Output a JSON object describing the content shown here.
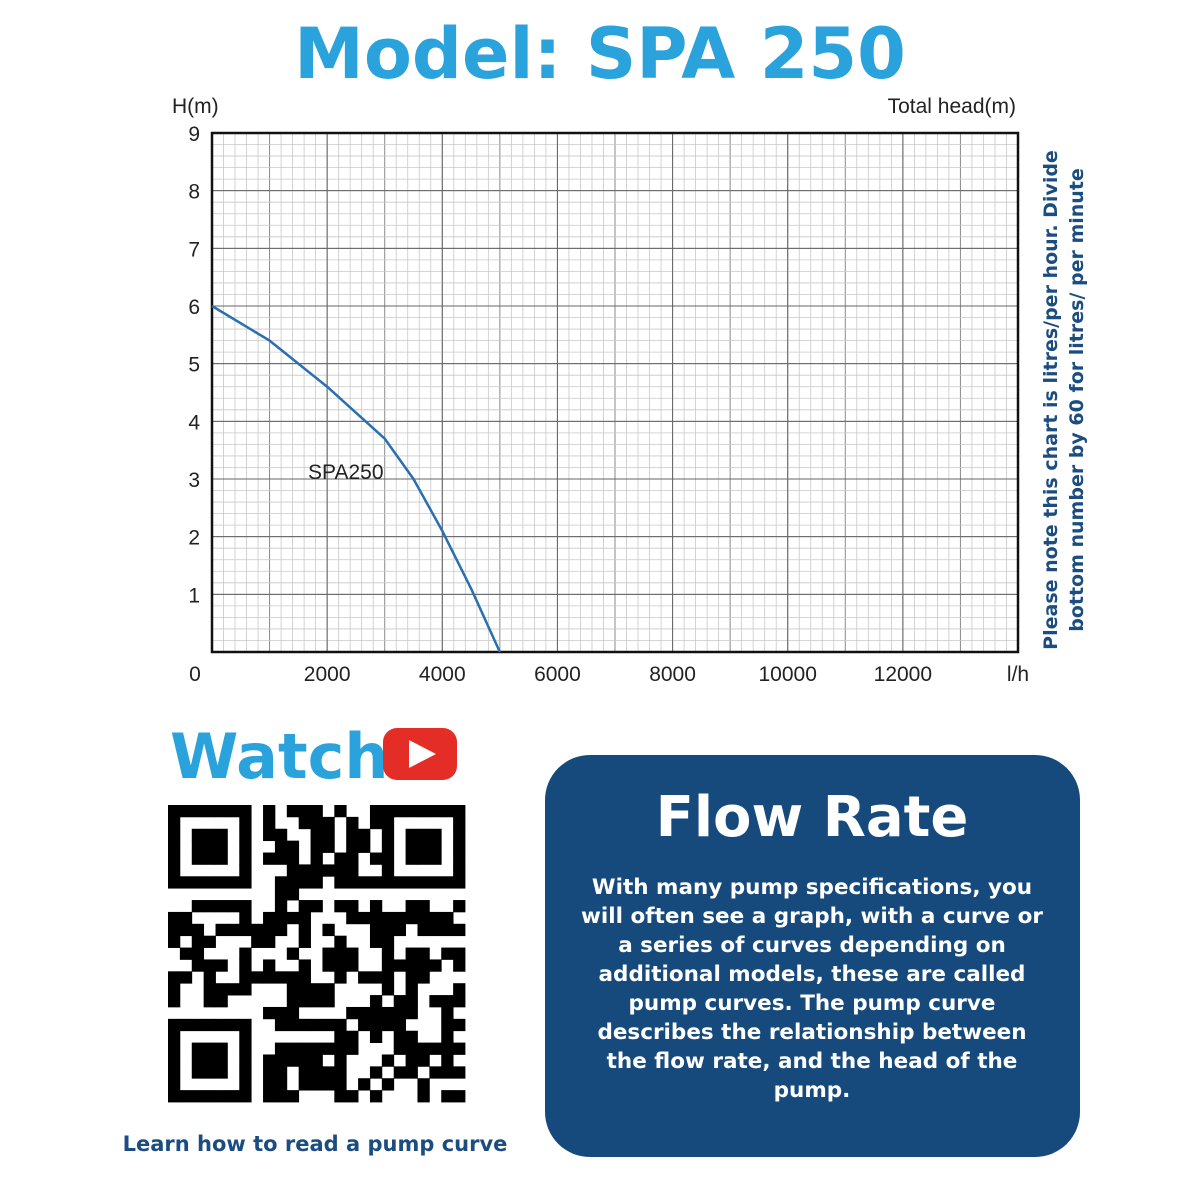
{
  "title": "Model: SPA 250",
  "chart_data": {
    "type": "line",
    "y_label": "H(m)",
    "y_label_right": "Total head(m)",
    "x_unit": "l/h",
    "x": [
      0,
      1000,
      2000,
      3000,
      3500,
      4000,
      4500,
      5000
    ],
    "series": [
      {
        "name": "SPA250",
        "color": "#2a6fb0",
        "values": [
          6,
          5.4,
          4.6,
          3.7,
          3.0,
          2.1,
          1.1,
          0
        ]
      }
    ],
    "xlim": [
      0,
      14000
    ],
    "ylim": [
      0,
      9
    ],
    "xticks": [
      0,
      2000,
      4000,
      6000,
      8000,
      10000,
      12000
    ],
    "yticks": [
      1,
      2,
      3,
      4,
      5,
      6,
      7,
      8,
      9
    ],
    "grid": true
  },
  "side_note": [
    "Please note this chart is litres/per hour. Divide",
    "bottom number by 60 for litres/ per minute"
  ],
  "watch": "Watch",
  "qr_caption": "Learn how to read a pump curve",
  "info": {
    "title": "Flow Rate",
    "body": [
      "With many pump specifications, you",
      "will often see a graph, with a curve or",
      "a series of curves depending on",
      "additional models, these are called",
      "pump curves. The pump curve",
      "describes the relationship between",
      "the flow rate, and the head of the",
      "pump."
    ]
  }
}
